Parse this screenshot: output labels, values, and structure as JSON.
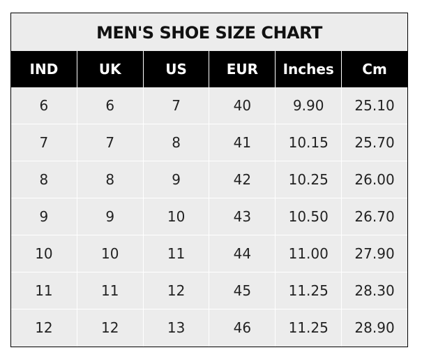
{
  "title": "MEN'S SHOE SIZE CHART",
  "headers": [
    "IND",
    "UK",
    "US",
    "EUR",
    "Inches",
    "Cm"
  ],
  "rows": [
    [
      "6",
      "6",
      "7",
      "40",
      "9.90",
      "25.10"
    ],
    [
      "7",
      "7",
      "8",
      "41",
      "10.15",
      "25.70"
    ],
    [
      "8",
      "8",
      "9",
      "42",
      "10.25",
      "26.00"
    ],
    [
      "9",
      "9",
      "10",
      "43",
      "10.50",
      "26.70"
    ],
    [
      "10",
      "10",
      "11",
      "44",
      "11.00",
      "27.90"
    ],
    [
      "11",
      "11",
      "12",
      "45",
      "11.25",
      "28.30"
    ],
    [
      "12",
      "12",
      "13",
      "46",
      "11.25",
      "28.90"
    ]
  ]
}
